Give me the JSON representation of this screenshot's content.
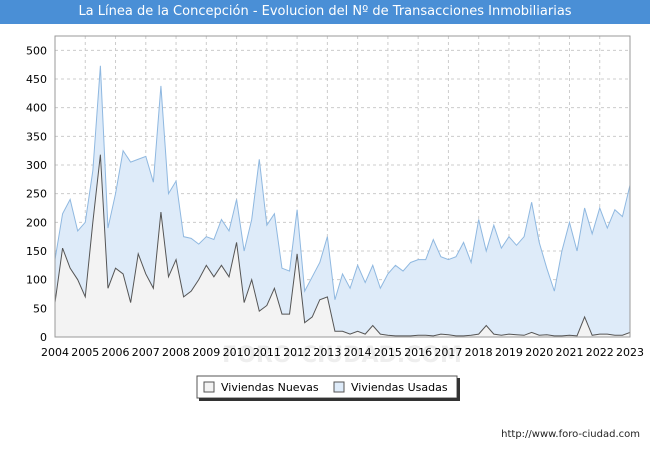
{
  "title": "La Línea de la Concepción - Evolucion del Nº de Transacciones Inmobiliarias",
  "footer": "http://www.foro-ciudad.com",
  "watermark": "FORO-CIUDAD.COM",
  "chart_data": {
    "type": "area",
    "x_tick_labels": [
      "2004",
      "2005",
      "2006",
      "2007",
      "2008",
      "2009",
      "2010",
      "2011",
      "2012",
      "2013",
      "2014",
      "2015",
      "2016",
      "2017",
      "2018",
      "2019",
      "2020",
      "2021",
      "2022",
      "2023"
    ],
    "y_ticks": [
      0,
      50,
      100,
      150,
      200,
      250,
      300,
      350,
      400,
      450,
      500
    ],
    "ylim": [
      0,
      525
    ],
    "xlim": [
      2004,
      2023
    ],
    "legend_position": "bottom-center",
    "grid": true,
    "series": [
      {
        "name": "Viviendas Nuevas",
        "line_color": "#555555",
        "fill_color": "#f3f3f3",
        "x": [
          2004,
          2004.25,
          2004.5,
          2004.75,
          2005,
          2005.25,
          2005.5,
          2005.75,
          2006,
          2006.25,
          2006.5,
          2006.75,
          2007,
          2007.25,
          2007.5,
          2007.75,
          2008,
          2008.25,
          2008.5,
          2008.75,
          2009,
          2009.25,
          2009.5,
          2009.75,
          2010,
          2010.25,
          2010.5,
          2010.75,
          2011,
          2011.25,
          2011.5,
          2011.75,
          2012,
          2012.25,
          2012.5,
          2012.75,
          2013,
          2013.25,
          2013.5,
          2013.75,
          2014,
          2014.25,
          2014.5,
          2014.75,
          2015,
          2015.25,
          2015.5,
          2015.75,
          2016,
          2016.25,
          2016.5,
          2016.75,
          2017,
          2017.25,
          2017.5,
          2017.75,
          2018,
          2018.25,
          2018.5,
          2018.75,
          2019,
          2019.25,
          2019.5,
          2019.75,
          2020,
          2020.25,
          2020.5,
          2020.75,
          2021,
          2021.25,
          2021.5,
          2021.75,
          2022,
          2022.25,
          2022.5,
          2022.75,
          2023
        ],
        "values": [
          60,
          155,
          120,
          100,
          70,
          200,
          318,
          85,
          120,
          110,
          60,
          145,
          110,
          85,
          218,
          105,
          135,
          70,
          80,
          100,
          125,
          105,
          125,
          105,
          165,
          60,
          100,
          45,
          55,
          85,
          40,
          40,
          145,
          25,
          35,
          65,
          70,
          10,
          10,
          5,
          10,
          5,
          20,
          5,
          3,
          2,
          2,
          2,
          3,
          3,
          2,
          5,
          4,
          2,
          2,
          3,
          5,
          20,
          5,
          3,
          5,
          4,
          3,
          8,
          3,
          4,
          2,
          2,
          3,
          2,
          35,
          3,
          5,
          5,
          3,
          3,
          8
        ]
      },
      {
        "name": "Viviendas Usadas",
        "line_color": "#8fb8e0",
        "fill_color": "#deebf9",
        "x": [
          2004,
          2004.25,
          2004.5,
          2004.75,
          2005,
          2005.25,
          2005.5,
          2005.75,
          2006,
          2006.25,
          2006.5,
          2006.75,
          2007,
          2007.25,
          2007.5,
          2007.75,
          2008,
          2008.25,
          2008.5,
          2008.75,
          2009,
          2009.25,
          2009.5,
          2009.75,
          2010,
          2010.25,
          2010.5,
          2010.75,
          2011,
          2011.25,
          2011.5,
          2011.75,
          2012,
          2012.25,
          2012.5,
          2012.75,
          2013,
          2013.25,
          2013.5,
          2013.75,
          2014,
          2014.25,
          2014.5,
          2014.75,
          2015,
          2015.25,
          2015.5,
          2015.75,
          2016,
          2016.25,
          2016.5,
          2016.75,
          2017,
          2017.25,
          2017.5,
          2017.75,
          2018,
          2018.25,
          2018.5,
          2018.75,
          2019,
          2019.25,
          2019.5,
          2019.75,
          2020,
          2020.25,
          2020.5,
          2020.75,
          2021,
          2021.25,
          2021.5,
          2021.75,
          2022,
          2022.25,
          2022.5,
          2022.75,
          2023
        ],
        "values": [
          135,
          215,
          240,
          185,
          200,
          290,
          473,
          190,
          250,
          325,
          305,
          310,
          315,
          270,
          438,
          250,
          272,
          175,
          172,
          162,
          175,
          170,
          205,
          185,
          240,
          150,
          205,
          310,
          195,
          215,
          120,
          115,
          222,
          80,
          105,
          130,
          175,
          65,
          110,
          85,
          125,
          95,
          125,
          85,
          110,
          125,
          115,
          130,
          135,
          135,
          170,
          140,
          135,
          140,
          165,
          130,
          205,
          150,
          195,
          155,
          175,
          160,
          175,
          235,
          165,
          120,
          80,
          150,
          200,
          150,
          225,
          180,
          225,
          190,
          222,
          210,
          265
        ]
      }
    ]
  }
}
